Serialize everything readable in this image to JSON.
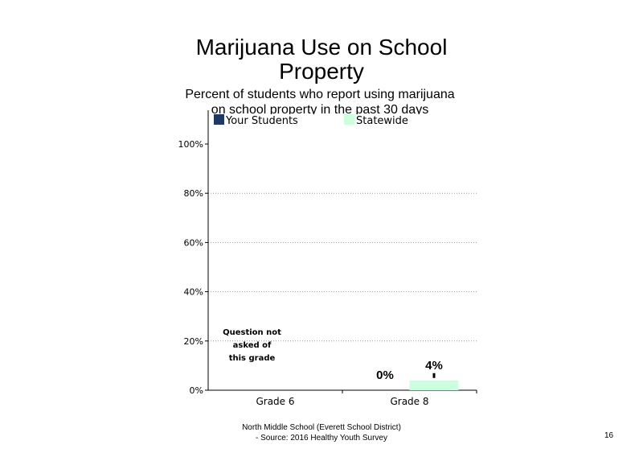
{
  "chart_data": {
    "type": "bar",
    "title_lines": [
      "Marijuana Use on School",
      "Property"
    ],
    "subtitle_lines": [
      "Percent of students who report using marijuana",
      "on school property in the past 30 days"
    ],
    "categories": [
      "Grade 6",
      "Grade 8"
    ],
    "series": [
      {
        "name": "Your Students",
        "values": [
          null,
          0
        ],
        "labels": [
          "",
          "0%"
        ],
        "color": "#1f3864"
      },
      {
        "name": "Statewide",
        "values": [
          null,
          4
        ],
        "labels": [
          "",
          "4%"
        ],
        "color": "#ccffdd"
      }
    ],
    "y_ticks": [
      "0%",
      "20%",
      "40%",
      "60%",
      "80%",
      "100%"
    ],
    "ylim": [
      0,
      100
    ],
    "grid": true,
    "legend_position": "top",
    "annotation": [
      "Question not",
      "asked of",
      "this grade"
    ]
  },
  "footer": {
    "line1": "North Middle School (Everett School District)",
    "line2": "- Source: 2016 Healthy  Youth Survey"
  },
  "page_number": "16"
}
